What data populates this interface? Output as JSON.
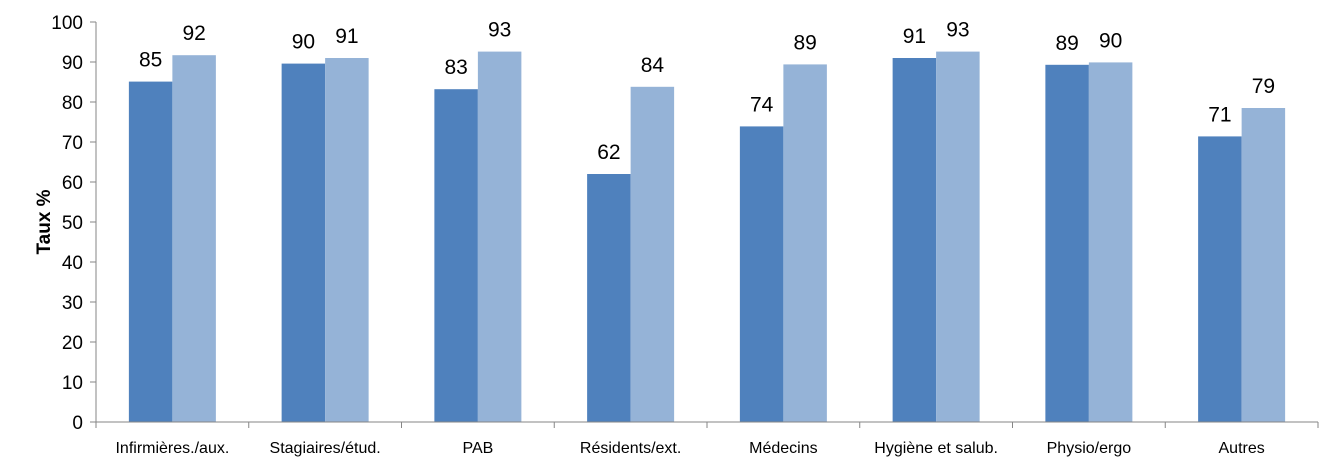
{
  "chart_data": {
    "type": "bar",
    "title": "",
    "xlabel": "",
    "ylabel": "Taux %",
    "ylim": [
      0,
      100
    ],
    "yticks": [
      0,
      10,
      20,
      30,
      40,
      50,
      60,
      70,
      80,
      90,
      100
    ],
    "grid": false,
    "legend": "none",
    "categories": [
      "Infirmières./aux.",
      "Stagiaires/étud.",
      "PAB",
      "Résidents/ext.",
      "Médecins",
      "Hygiène et salub.",
      "Physio/ergo",
      "Autres"
    ],
    "series": [
      {
        "values": [
          85,
          90,
          83,
          62,
          74,
          91,
          89,
          71
        ],
        "plotted": [
          85.1,
          89.6,
          83.2,
          62.0,
          73.9,
          91.0,
          89.3,
          71.4
        ],
        "color": "#4f81bd"
      },
      {
        "values": [
          92,
          91,
          93,
          84,
          89,
          93,
          90,
          79
        ],
        "plotted": [
          91.7,
          91.0,
          92.6,
          83.8,
          89.4,
          92.6,
          89.9,
          78.5
        ],
        "color": "#95b3d7"
      }
    ]
  }
}
